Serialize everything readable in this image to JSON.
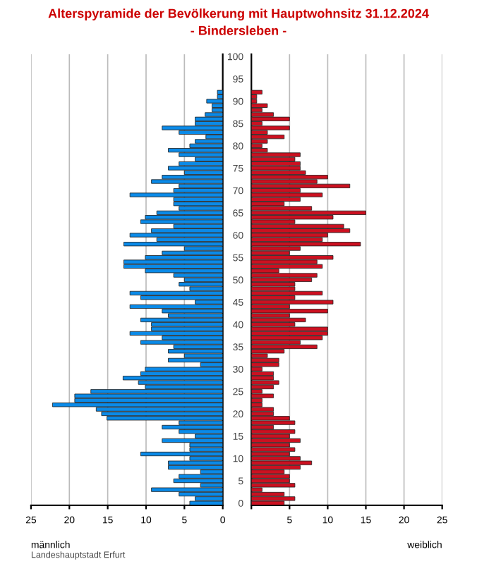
{
  "chart_data": [
    {
      "type": "bar",
      "orientation": "horizontal",
      "title": "Alterspyramide der Bevölkerung mit Hauptwohnsitz 31.12.2024",
      "subtitle": "- Bindersleben -",
      "xlabel": "männlich",
      "categories": [
        "100",
        null,
        null,
        null,
        null,
        "95",
        null,
        null,
        null,
        null,
        "90",
        null,
        null,
        null,
        null,
        "85",
        null,
        null,
        null,
        null,
        "80",
        null,
        null,
        null,
        null,
        "75",
        null,
        null,
        null,
        null,
        "70",
        null,
        null,
        null,
        null,
        "65",
        null,
        null,
        null,
        null,
        "60",
        null,
        null,
        null,
        null,
        "55",
        null,
        null,
        null,
        null,
        "50",
        null,
        null,
        null,
        null,
        "45",
        null,
        null,
        null,
        null,
        "40",
        null,
        null,
        null,
        null,
        "35",
        null,
        null,
        null,
        null,
        "30",
        null,
        null,
        null,
        null,
        "25",
        null,
        null,
        null,
        null,
        "20",
        null,
        null,
        null,
        null,
        "15",
        null,
        null,
        null,
        null,
        "10",
        null,
        null,
        null,
        null,
        "5",
        null,
        null,
        null,
        null,
        "0"
      ],
      "series": [
        {
          "color": "#0a8ae8",
          "values": [
            0,
            0,
            0,
            0,
            0,
            0,
            0,
            0,
            0.7,
            0.7,
            2.1,
            1.4,
            1.4,
            2.3,
            3.6,
            3.6,
            7.9,
            5.7,
            2.2,
            3.6,
            4.3,
            7.1,
            5.7,
            3.6,
            5.7,
            7.1,
            5.0,
            7.9,
            9.3,
            5.7,
            6.4,
            12.1,
            6.4,
            6.4,
            5.7,
            8.6,
            10.1,
            10.7,
            6.4,
            9.3,
            12.1,
            8.6,
            12.9,
            5.0,
            7.9,
            10.1,
            12.9,
            12.9,
            10.1,
            6.4,
            5.0,
            5.7,
            4.3,
            12.1,
            10.7,
            3.6,
            12.1,
            7.9,
            7.1,
            10.7,
            9.3,
            9.3,
            12.1,
            7.9,
            10.7,
            6.4,
            7.1,
            5.0,
            7.1,
            2.9,
            10.1,
            10.7,
            13.0,
            11.0,
            10.1,
            17.2,
            19.3,
            19.3,
            22.2,
            16.5,
            15.8,
            15.1,
            5.7,
            7.9,
            5.7,
            3.6,
            7.9,
            4.3,
            4.3,
            10.7,
            4.3,
            7.1,
            7.1,
            2.9,
            5.7,
            6.4,
            2.9,
            9.3,
            5.7,
            3.6,
            4.3
          ]
        }
      ],
      "xlim": [
        25,
        0
      ],
      "xticks": [
        25,
        20,
        15,
        10,
        5,
        0
      ],
      "grid": "x",
      "tick_labels": "x"
    },
    {
      "type": "bar",
      "orientation": "horizontal",
      "xlabel": "weiblich",
      "annotations": [
        "Landeshauptstadt Erfurt"
      ],
      "categories": [
        "100",
        null,
        null,
        null,
        null,
        "95",
        null,
        null,
        null,
        null,
        "90",
        null,
        null,
        null,
        null,
        "85",
        null,
        null,
        null,
        null,
        "80",
        null,
        null,
        null,
        null,
        "75",
        null,
        null,
        null,
        null,
        "70",
        null,
        null,
        null,
        null,
        "65",
        null,
        null,
        null,
        null,
        "60",
        null,
        null,
        null,
        null,
        "55",
        null,
        null,
        null,
        null,
        "50",
        null,
        null,
        null,
        null,
        "45",
        null,
        null,
        null,
        null,
        "40",
        null,
        null,
        null,
        null,
        "35",
        null,
        null,
        null,
        null,
        "30",
        null,
        null,
        null,
        null,
        "25",
        null,
        null,
        null,
        null,
        "20",
        null,
        null,
        null,
        null,
        "15",
        null,
        null,
        null,
        null,
        "10",
        null,
        null,
        null,
        null,
        "5",
        null,
        null,
        null,
        null,
        "0"
      ],
      "series": [
        {
          "color": "#cc1020",
          "values": [
            0,
            0,
            0,
            0,
            0,
            0,
            0,
            0,
            1.4,
            0.7,
            0.7,
            2.1,
            1.4,
            2.9,
            5.0,
            1.4,
            5.0,
            2.1,
            4.3,
            2.1,
            1.4,
            2.1,
            6.4,
            5.7,
            6.4,
            6.4,
            7.1,
            10.0,
            8.6,
            12.9,
            6.4,
            9.3,
            6.4,
            4.3,
            7.9,
            15.0,
            10.7,
            5.7,
            12.1,
            12.9,
            10.0,
            9.3,
            14.3,
            6.4,
            5.0,
            10.7,
            8.6,
            9.3,
            3.6,
            8.6,
            7.9,
            5.7,
            5.7,
            9.3,
            5.7,
            10.7,
            5.0,
            10.0,
            5.0,
            7.1,
            5.7,
            10.0,
            10.0,
            9.3,
            6.4,
            8.6,
            4.3,
            2.1,
            3.6,
            3.6,
            1.4,
            2.9,
            2.9,
            3.6,
            2.9,
            1.4,
            2.9,
            1.4,
            1.4,
            2.9,
            2.9,
            5.0,
            5.7,
            2.9,
            5.7,
            5.0,
            6.4,
            5.0,
            5.7,
            5.0,
            6.4,
            7.9,
            6.4,
            4.3,
            5.0,
            5.0,
            5.7,
            1.4,
            4.3,
            5.7,
            4.3
          ]
        }
      ],
      "xlim": [
        0,
        25
      ],
      "xticks": [
        {
          "value": 0,
          "label": null
        },
        5,
        10,
        15,
        20,
        25
      ],
      "grid": "x"
    }
  ]
}
